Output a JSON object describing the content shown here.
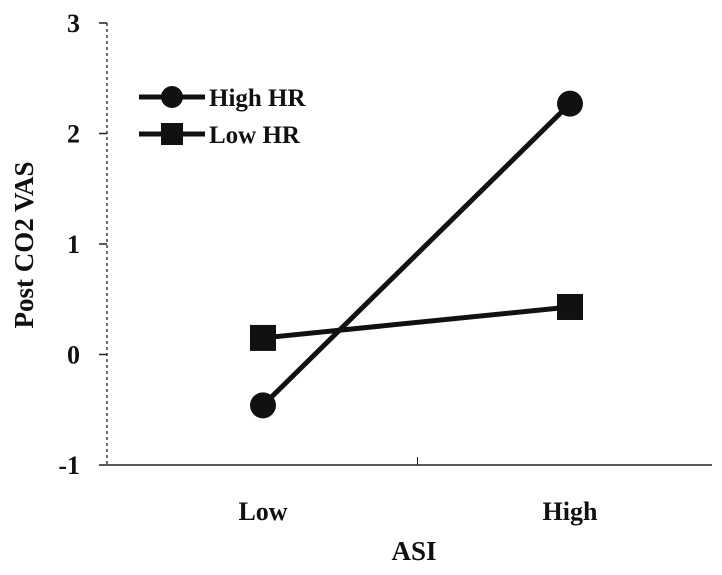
{
  "chart_data": {
    "type": "line",
    "categories": [
      "Low",
      "High"
    ],
    "series": [
      {
        "name": "High HR",
        "marker": "circle",
        "values": [
          -0.46,
          2.27
        ]
      },
      {
        "name": "Low HR",
        "marker": "square",
        "values": [
          0.15,
          0.43
        ]
      }
    ],
    "title": "",
    "xlabel": "ASI",
    "ylabel": "Post CO2 VAS",
    "ylim": [
      -1,
      3
    ],
    "yticks": [
      -1,
      0,
      1,
      2,
      3
    ],
    "grid": false,
    "legend_position": "top-left",
    "colors": {
      "line": "#111111",
      "axis": "#222222"
    }
  }
}
